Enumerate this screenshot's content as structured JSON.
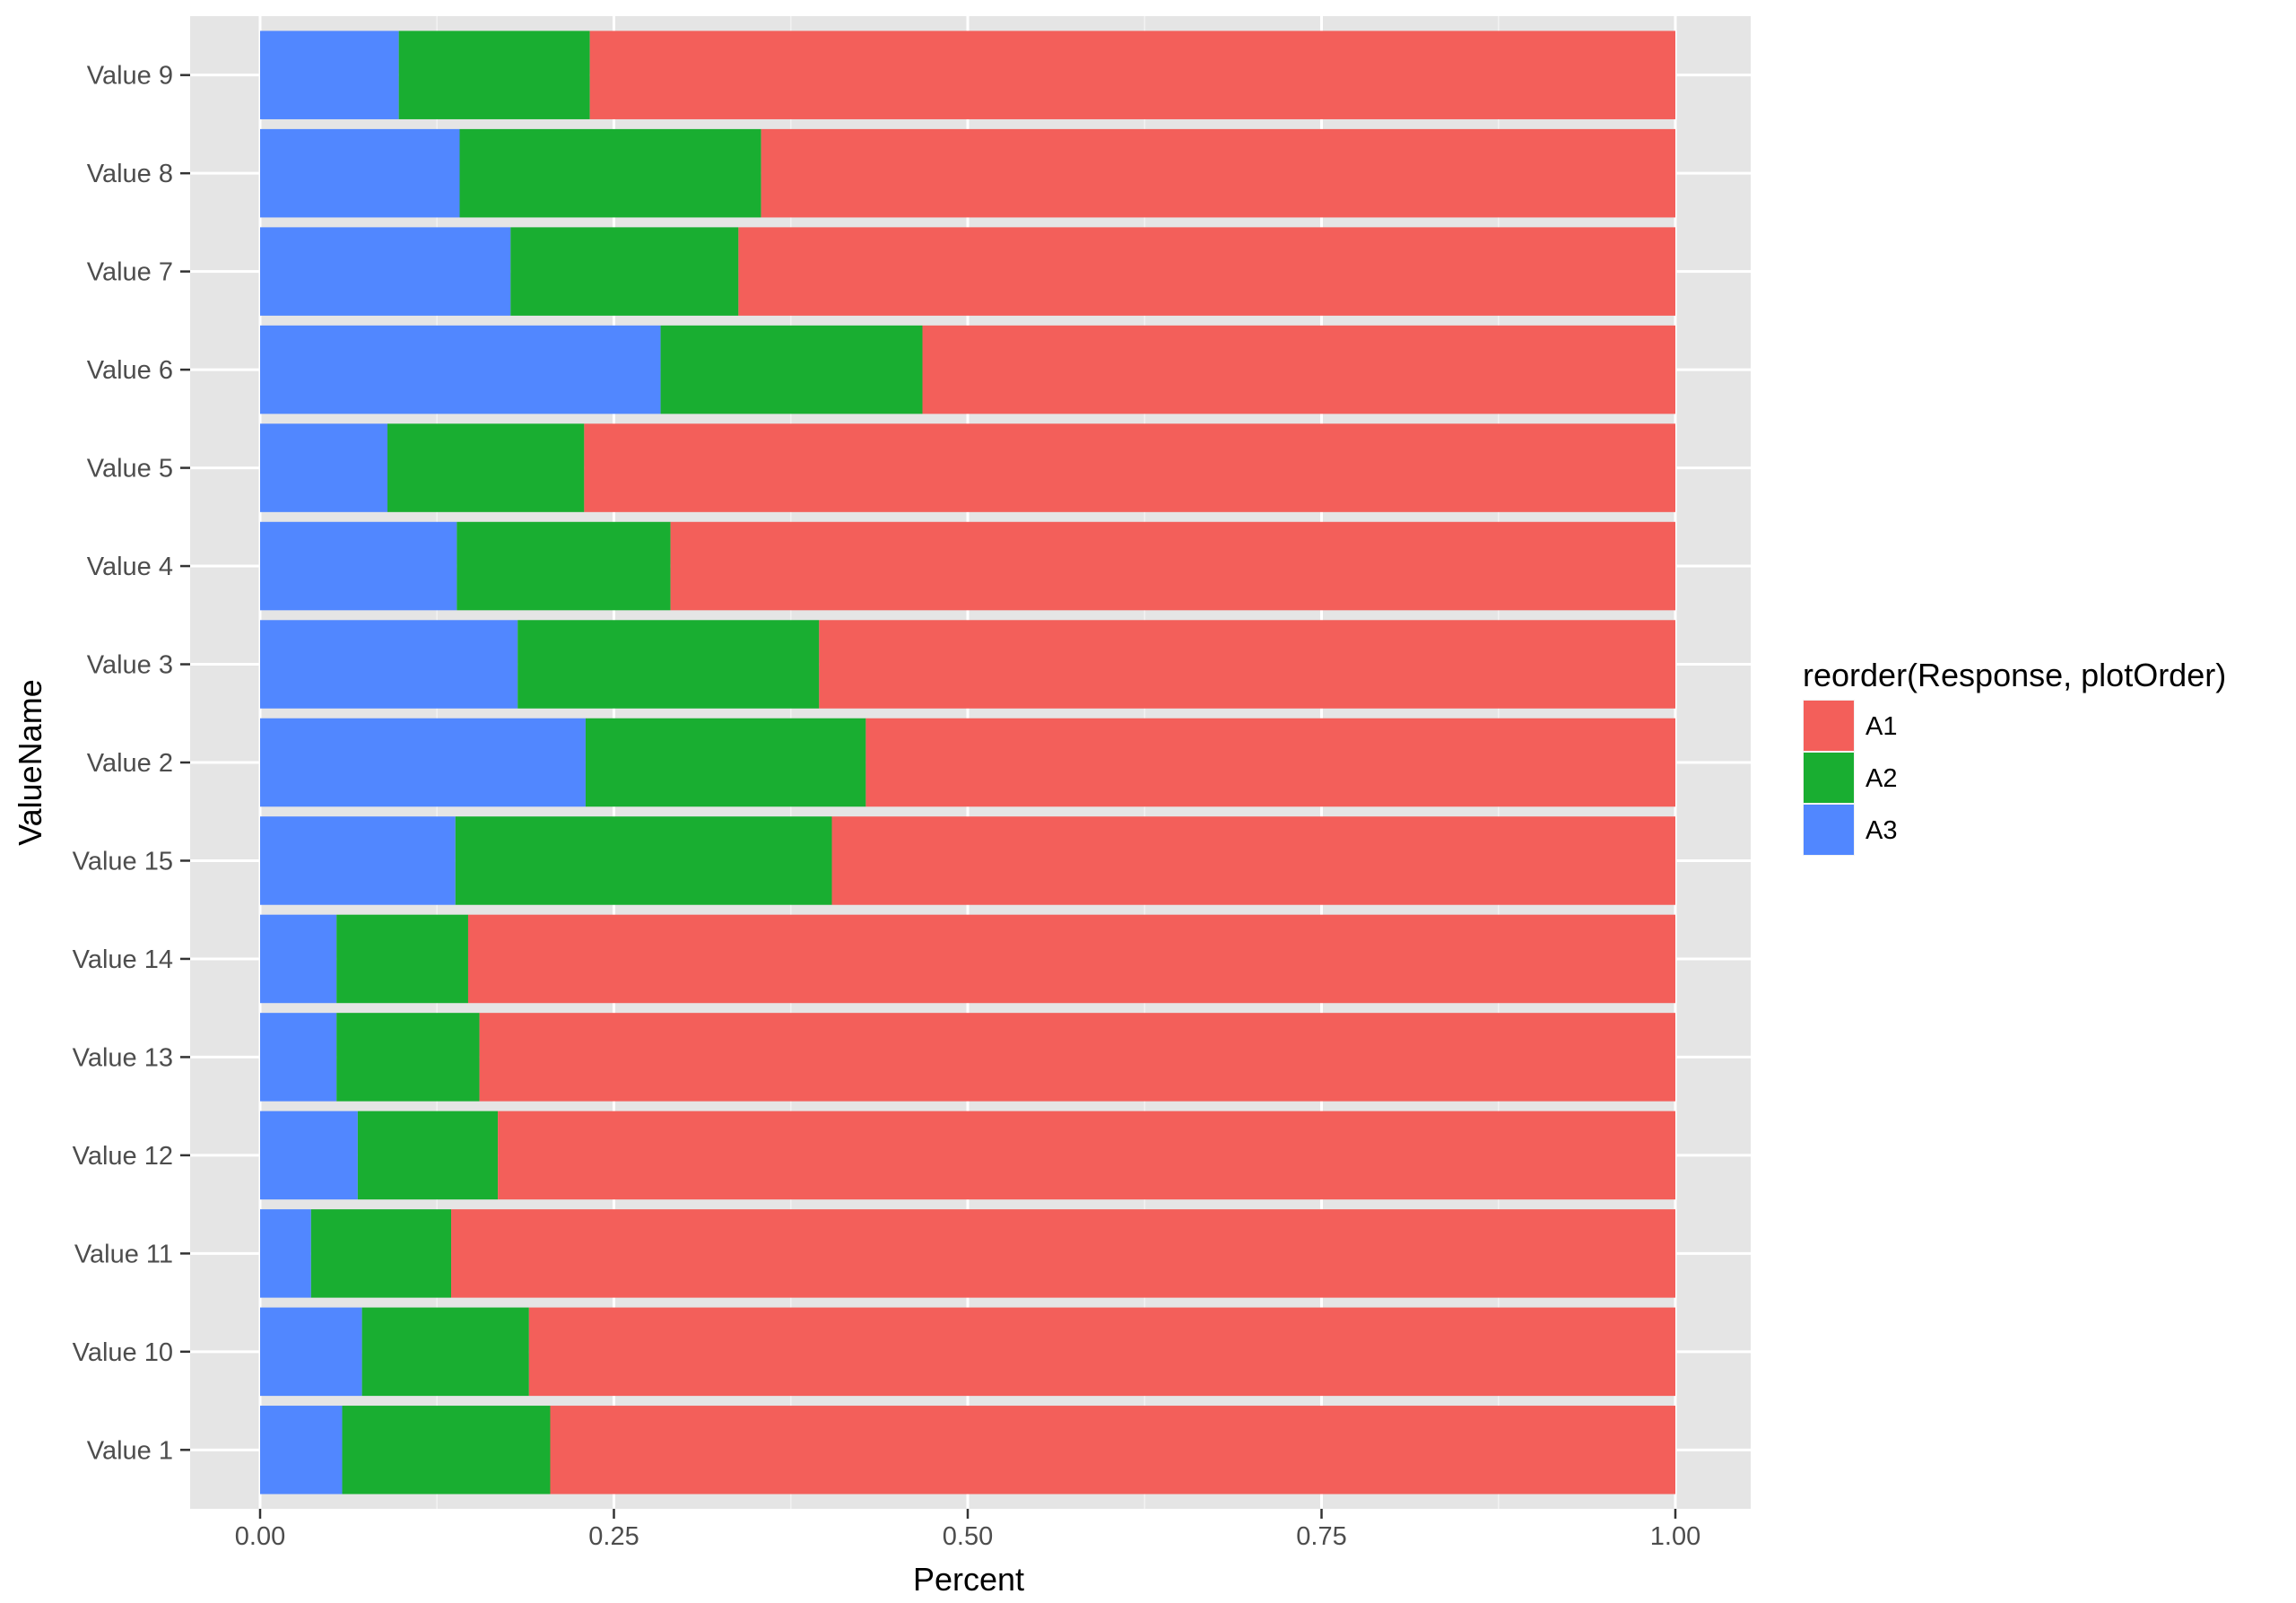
{
  "chart_data": {
    "type": "bar",
    "orientation": "horizontal",
    "stacked": true,
    "xlabel": "Percent",
    "ylabel": "ValueName",
    "xlim": [
      0,
      1
    ],
    "x_ticks": [
      0,
      0.25,
      0.5,
      0.75,
      1
    ],
    "x_tick_labels": [
      "0.00",
      "0.25",
      "0.50",
      "0.75",
      "1.00"
    ],
    "grid": true,
    "legend": {
      "title": "reorder(Response, plotOrder)",
      "placement": "right"
    },
    "categories": [
      "Value 9",
      "Value 8",
      "Value 7",
      "Value 6",
      "Value 5",
      "Value 4",
      "Value 3",
      "Value 2",
      "Value 15",
      "Value 14",
      "Value 13",
      "Value 12",
      "Value 11",
      "Value 10",
      "Value 1"
    ],
    "stack_order": [
      "A3",
      "A2",
      "A1"
    ],
    "series": [
      {
        "name": "A1",
        "color": "#F35F5A",
        "values": [
          0.767,
          0.646,
          0.662,
          0.532,
          0.771,
          0.71,
          0.605,
          0.572,
          0.596,
          0.853,
          0.845,
          0.832,
          0.865,
          0.81,
          0.795
        ]
      },
      {
        "name": "A2",
        "color": "#19AE31",
        "values": [
          0.135,
          0.213,
          0.161,
          0.185,
          0.139,
          0.151,
          0.213,
          0.198,
          0.266,
          0.093,
          0.101,
          0.099,
          0.099,
          0.118,
          0.147
        ]
      },
      {
        "name": "A3",
        "color": "#5187FF",
        "values": [
          0.098,
          0.141,
          0.177,
          0.283,
          0.09,
          0.139,
          0.182,
          0.23,
          0.138,
          0.054,
          0.054,
          0.069,
          0.036,
          0.072,
          0.058
        ]
      }
    ]
  }
}
